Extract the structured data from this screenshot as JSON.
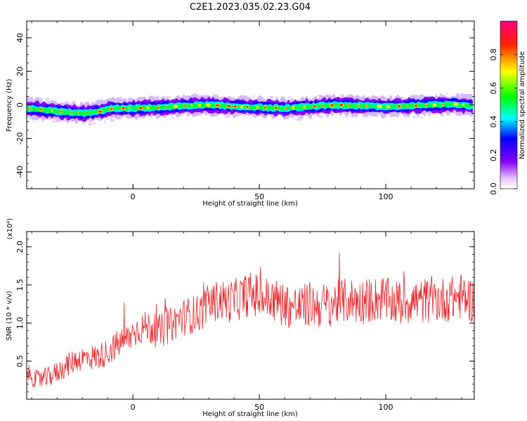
{
  "figure": {
    "title": "C2E1.2023.035.02.23.G04"
  },
  "chart_data": [
    {
      "type": "heatmap",
      "xlabel": "Height of straight line (km)",
      "ylabel": "Frequency (Hz)",
      "xlim": [
        -42,
        135
      ],
      "ylim": [
        -50,
        50
      ],
      "x_ticks": [
        0,
        50,
        100
      ],
      "y_ticks": [
        40,
        20,
        0,
        -20,
        -40
      ],
      "x_tick_labels": [
        "0",
        "50",
        "100"
      ],
      "y_tick_labels": [
        "40",
        "20",
        "0",
        "-20",
        "-40"
      ],
      "colorbar": {
        "label": "Normalized spectral amplitude",
        "range": [
          0,
          1
        ],
        "ticks": [
          0.0,
          0.2,
          0.4,
          0.6,
          0.8
        ],
        "tick_labels": [
          "0.0",
          "0.2",
          "0.4",
          "0.6",
          "0.8"
        ],
        "colors": [
          "#ffffff",
          "#a000ff",
          "#0000ff",
          "#00ffff",
          "#00ff00",
          "#ffff00",
          "#ff0000",
          "#ff0080"
        ]
      },
      "ridge_center": {
        "x": [
          -42,
          -35,
          -28,
          -20,
          -14,
          -8,
          0,
          10,
          20,
          30,
          40,
          50,
          60,
          70,
          80,
          90,
          100,
          110,
          120,
          127,
          135
        ],
        "y": [
          -2,
          -3,
          -4,
          -5,
          -4,
          -2,
          -2,
          -1.5,
          -0.5,
          0,
          -1,
          -1.5,
          -2,
          -1,
          0,
          -0.5,
          -1,
          -0.5,
          0,
          0.5,
          -1
        ]
      },
      "grid": false
    },
    {
      "type": "line",
      "xlabel": "Height of straight line (km)",
      "ylabel": "SNR (10 * v/v)",
      "y_multiplier": "(x10⁴)",
      "xlim": [
        -42,
        135
      ],
      "ylim": [
        0,
        2.2
      ],
      "x_ticks": [
        0,
        50,
        100
      ],
      "y_ticks": [
        0.5,
        1.0,
        1.5,
        2.0
      ],
      "x_tick_labels": [
        "0",
        "50",
        "100"
      ],
      "y_tick_labels": [
        "0.5",
        "1.0",
        "1.5",
        "2.0"
      ],
      "series": [
        {
          "color": "#e8242a",
          "x": [
            -42,
            -38,
            -34,
            -30,
            -26,
            -22,
            -18,
            -14,
            -10,
            -6,
            -2,
            2,
            6,
            10,
            14,
            18,
            22,
            26,
            30,
            34,
            38,
            42,
            46,
            50,
            54,
            58,
            62,
            66,
            70,
            74,
            78,
            82,
            86,
            90,
            94,
            98,
            102,
            106,
            110,
            114,
            118,
            122,
            126,
            130,
            134
          ],
          "y": [
            0.35,
            0.25,
            0.28,
            0.35,
            0.45,
            0.52,
            0.55,
            0.55,
            0.62,
            0.72,
            0.8,
            0.92,
            0.95,
            0.88,
            0.95,
            1.05,
            1.1,
            1.12,
            1.25,
            1.3,
            1.28,
            1.32,
            1.38,
            1.35,
            1.3,
            1.28,
            1.22,
            1.2,
            1.25,
            1.22,
            1.25,
            1.28,
            1.3,
            1.28,
            1.3,
            1.32,
            1.28,
            1.25,
            1.3,
            1.28,
            1.32,
            1.3,
            1.32,
            1.35,
            1.3
          ]
        }
      ],
      "grid": false
    }
  ]
}
